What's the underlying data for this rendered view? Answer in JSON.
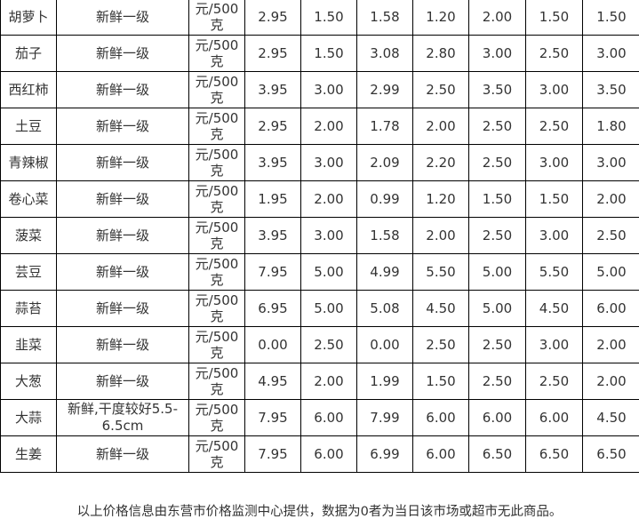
{
  "rows": [
    {
      "name": "胡萝卜",
      "grade": "新鲜一级",
      "unit": "元/500克",
      "prices": [
        "2.95",
        "1.50",
        "1.58",
        "1.20",
        "2.00",
        "1.50",
        "1.50"
      ]
    },
    {
      "name": "茄子",
      "grade": "新鲜一级",
      "unit": "元/500克",
      "prices": [
        "2.95",
        "1.50",
        "3.08",
        "2.80",
        "3.00",
        "2.50",
        "3.00"
      ]
    },
    {
      "name": "西红柿",
      "grade": "新鲜一级",
      "unit": "元/500克",
      "prices": [
        "3.95",
        "3.00",
        "2.99",
        "2.50",
        "3.50",
        "3.00",
        "3.50"
      ]
    },
    {
      "name": "土豆",
      "grade": "新鲜一级",
      "unit": "元/500克",
      "prices": [
        "2.95",
        "2.00",
        "1.78",
        "2.00",
        "2.50",
        "2.50",
        "1.80"
      ]
    },
    {
      "name": "青辣椒",
      "grade": "新鲜一级",
      "unit": "元/500克",
      "prices": [
        "3.95",
        "3.00",
        "2.09",
        "2.20",
        "2.50",
        "3.00",
        "3.00"
      ]
    },
    {
      "name": "卷心菜",
      "grade": "新鲜一级",
      "unit": "元/500克",
      "prices": [
        "1.95",
        "2.00",
        "0.99",
        "1.20",
        "1.50",
        "1.50",
        "2.00"
      ]
    },
    {
      "name": "菠菜",
      "grade": "新鲜一级",
      "unit": "元/500克",
      "prices": [
        "3.95",
        "3.00",
        "1.58",
        "2.00",
        "2.50",
        "3.00",
        "2.50"
      ]
    },
    {
      "name": "芸豆",
      "grade": "新鲜一级",
      "unit": "元/500克",
      "prices": [
        "7.95",
        "5.00",
        "4.99",
        "5.50",
        "5.00",
        "5.50",
        "5.00"
      ]
    },
    {
      "name": "蒜苔",
      "grade": "新鲜一级",
      "unit": "元/500克",
      "prices": [
        "6.95",
        "5.00",
        "5.08",
        "4.50",
        "5.00",
        "4.50",
        "6.00"
      ]
    },
    {
      "name": "韭菜",
      "grade": "新鲜一级",
      "unit": "元/500克",
      "prices": [
        "0.00",
        "2.50",
        "0.00",
        "2.50",
        "2.50",
        "3.00",
        "2.00"
      ]
    },
    {
      "name": "大葱",
      "grade": "新鲜一级",
      "unit": "元/500克",
      "prices": [
        "4.95",
        "2.00",
        "1.99",
        "1.50",
        "2.50",
        "2.50",
        "2.00"
      ]
    },
    {
      "name": "大蒜",
      "grade": "新鲜,干度较好5.5-6.5cm",
      "unit": "元/500克",
      "prices": [
        "7.95",
        "6.00",
        "7.99",
        "6.00",
        "6.00",
        "6.00",
        "4.50"
      ]
    },
    {
      "name": "生姜",
      "grade": "新鲜一级",
      "unit": "元/500克",
      "prices": [
        "7.95",
        "6.00",
        "6.99",
        "6.00",
        "6.50",
        "6.50",
        "6.50"
      ]
    }
  ],
  "footer": "以上价格信息由东营市价格监测中心提供，数据为0者为当日该市场或超市无此商品。"
}
